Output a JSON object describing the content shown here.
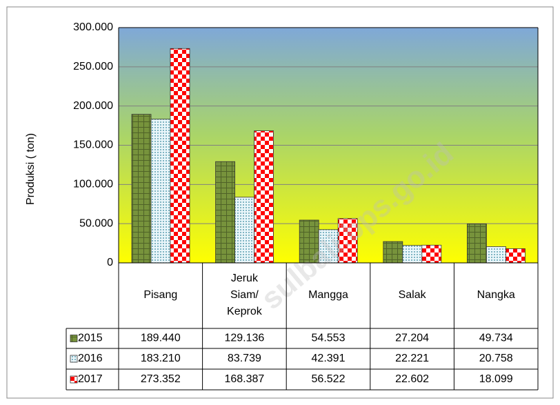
{
  "chart_data": {
    "type": "bar",
    "y_label": "Produksi ( ton)",
    "watermark": "sulbali.bps.go.id",
    "categories": [
      "Pisang",
      "Jeruk Siam/ Keprok",
      "Mangga",
      "Salak",
      "Nangka"
    ],
    "series": [
      {
        "name": "2015",
        "color": "#77933c",
        "values": [
          189440,
          129136,
          54553,
          27204,
          49734
        ],
        "value_labels": [
          "189.440",
          "129.136",
          "54.553",
          "27.204",
          "49.734"
        ]
      },
      {
        "name": "2016",
        "color": "#31849b",
        "values": [
          183210,
          83739,
          42391,
          22221,
          20758
        ],
        "value_labels": [
          "183.210",
          "83.739",
          "42.391",
          "22.221",
          "20.758"
        ]
      },
      {
        "name": "2017",
        "color": "#ff0000",
        "values": [
          273352,
          168387,
          56522,
          22602,
          18099
        ],
        "value_labels": [
          "273.352",
          "168.387",
          "56.522",
          "22.602",
          "18.099"
        ]
      }
    ],
    "ylim": [
      0,
      300000
    ],
    "yticks": [
      0,
      {
        "value": 50000,
        "label": "50.000"
      },
      {
        "value": 100000,
        "label": "100.000"
      },
      {
        "value": 150000,
        "label": "150.000"
      },
      {
        "value": 200000,
        "label": "200.000"
      },
      {
        "value": 250000,
        "label": "250.000"
      },
      {
        "value": 300000,
        "label": "300.000"
      }
    ],
    "grid": true
  }
}
